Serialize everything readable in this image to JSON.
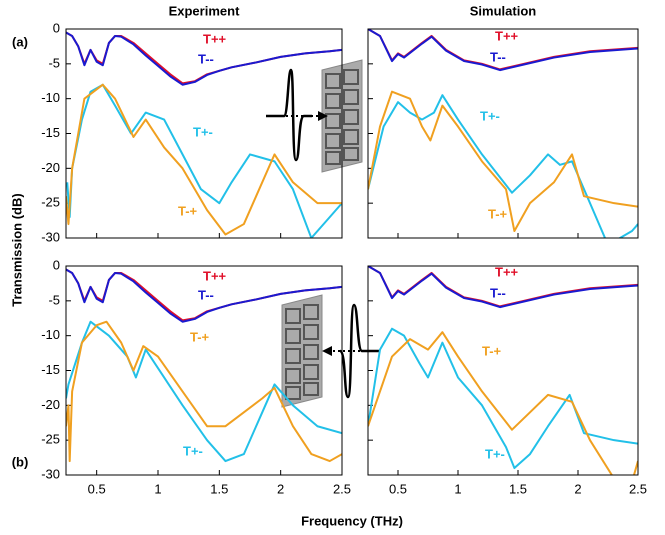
{
  "y_label": "Transmission (dB)",
  "x_label": "Frequency (THz)",
  "chart_data": [
    {
      "type": "line",
      "title": "Experiment",
      "panel_label": "(a)",
      "xlim": [
        0.25,
        2.5
      ],
      "ylim": [
        -30,
        0
      ],
      "xticks": [
        0.5,
        1,
        1.5,
        2,
        2.5
      ],
      "yticks": [
        0,
        -5,
        -10,
        -15,
        -20,
        -25,
        -30
      ],
      "series": [
        {
          "name": "T++",
          "color": "#e0102a",
          "x": [
            0.25,
            0.3,
            0.35,
            0.4,
            0.45,
            0.5,
            0.55,
            0.6,
            0.65,
            0.7,
            0.8,
            0.9,
            1.0,
            1.1,
            1.2,
            1.3,
            1.4,
            1.5,
            1.6,
            1.8,
            2.0,
            2.2,
            2.4,
            2.5
          ],
          "values": [
            -0.5,
            -1,
            -2.5,
            -5,
            -3,
            -4.5,
            -5,
            -2,
            -1,
            -1,
            -2,
            -3.5,
            -5,
            -6.5,
            -7.8,
            -7.5,
            -6.5,
            -6,
            -5.5,
            -4.8,
            -4,
            -3.5,
            -3.2,
            -3
          ]
        },
        {
          "name": "T--",
          "color": "#1a1ad0",
          "x": [
            0.25,
            0.3,
            0.35,
            0.4,
            0.45,
            0.5,
            0.55,
            0.6,
            0.65,
            0.7,
            0.8,
            0.9,
            1.0,
            1.1,
            1.2,
            1.3,
            1.4,
            1.5,
            1.6,
            1.8,
            2.0,
            2.2,
            2.4,
            2.5
          ],
          "values": [
            -0.5,
            -1,
            -2.5,
            -5.2,
            -3,
            -4.7,
            -5.2,
            -2,
            -1,
            -1.1,
            -2.2,
            -3.8,
            -5.3,
            -6.8,
            -8,
            -7.6,
            -6.6,
            -6,
            -5.5,
            -4.8,
            -4,
            -3.5,
            -3.2,
            -3
          ]
        },
        {
          "name": "T+-",
          "color": "#22c0e8",
          "x": [
            0.26,
            0.28,
            0.3,
            0.38,
            0.45,
            0.55,
            0.65,
            0.78,
            0.9,
            1.05,
            1.2,
            1.35,
            1.5,
            1.6,
            1.75,
            1.95,
            2.1,
            2.25,
            2.4,
            2.5
          ],
          "values": [
            -22,
            -27,
            -20,
            -13,
            -9,
            -8,
            -11,
            -15,
            -12,
            -13,
            -18,
            -23,
            -25,
            -22,
            -18,
            -19,
            -23,
            -30,
            -27,
            -25
          ]
        },
        {
          "name": "T-+",
          "color": "#f0a020",
          "x": [
            0.25,
            0.27,
            0.3,
            0.4,
            0.55,
            0.65,
            0.8,
            0.9,
            1.05,
            1.2,
            1.4,
            1.55,
            1.7,
            1.8,
            1.95,
            2.1,
            2.3,
            2.5
          ],
          "values": [
            -24,
            -28,
            -20,
            -10,
            -8,
            -10,
            -15.5,
            -13,
            -17,
            -20,
            -26,
            -29.5,
            -28,
            -24,
            -18,
            -22,
            -25,
            -25
          ]
        }
      ]
    },
    {
      "type": "line",
      "title": "Simulation",
      "xlim": [
        0.25,
        2.5
      ],
      "ylim": [
        -30,
        0
      ],
      "xticks": [
        0.5,
        1,
        1.5,
        2,
        2.5
      ],
      "yticks": [
        0,
        -5,
        -10,
        -15,
        -20,
        -25,
        -30
      ],
      "series": [
        {
          "name": "T++",
          "color": "#e0102a",
          "x": [
            0.25,
            0.35,
            0.45,
            0.5,
            0.55,
            0.7,
            0.78,
            0.9,
            1.05,
            1.2,
            1.35,
            1.55,
            1.8,
            2.1,
            2.5
          ],
          "values": [
            0,
            -1,
            -4.5,
            -3.5,
            -4,
            -2,
            -1,
            -3,
            -4.5,
            -5,
            -5.8,
            -5,
            -4,
            -3.2,
            -2.7
          ]
        },
        {
          "name": "T--",
          "color": "#1a1ad0",
          "x": [
            0.25,
            0.35,
            0.45,
            0.5,
            0.55,
            0.7,
            0.78,
            0.9,
            1.05,
            1.2,
            1.35,
            1.55,
            1.8,
            2.1,
            2.5
          ],
          "values": [
            0,
            -1,
            -4.6,
            -3.6,
            -4.1,
            -2.1,
            -1.1,
            -3.1,
            -4.6,
            -5.1,
            -5.9,
            -5.1,
            -4.1,
            -3.3,
            -2.8
          ]
        },
        {
          "name": "T+-",
          "color": "#22c0e8",
          "x": [
            0.25,
            0.38,
            0.5,
            0.6,
            0.7,
            0.8,
            0.87,
            1.0,
            1.2,
            1.45,
            1.6,
            1.75,
            1.85,
            1.95,
            2.1,
            2.25,
            2.45,
            2.5
          ],
          "values": [
            -23,
            -14,
            -10.5,
            -12,
            -13,
            -12,
            -9.5,
            -13,
            -18,
            -23.5,
            -21,
            -18,
            -19.5,
            -19,
            -25,
            -31,
            -29,
            -28
          ]
        },
        {
          "name": "T-+",
          "color": "#f0a020",
          "x": [
            0.25,
            0.35,
            0.45,
            0.6,
            0.7,
            0.77,
            0.87,
            1.0,
            1.2,
            1.4,
            1.47,
            1.6,
            1.8,
            1.95,
            2.05,
            2.3,
            2.5
          ],
          "values": [
            -23,
            -14,
            -9,
            -10,
            -14,
            -16,
            -11,
            -14,
            -19,
            -23,
            -29,
            -25,
            -22,
            -18,
            -24,
            -25,
            -25.5
          ]
        }
      ]
    },
    {
      "type": "line",
      "panel_label": "(b)",
      "xlim": [
        0.25,
        2.5
      ],
      "ylim": [
        -30,
        0
      ],
      "xticks": [
        0.5,
        1,
        1.5,
        2,
        2.5
      ],
      "yticks": [
        0,
        -5,
        -10,
        -15,
        -20,
        -25,
        -30
      ],
      "series": [
        {
          "name": "T++",
          "color": "#e0102a",
          "x": [
            0.25,
            0.3,
            0.35,
            0.4,
            0.45,
            0.5,
            0.55,
            0.6,
            0.65,
            0.7,
            0.8,
            0.9,
            1.0,
            1.1,
            1.2,
            1.3,
            1.4,
            1.5,
            1.6,
            1.8,
            2.0,
            2.2,
            2.4,
            2.5
          ],
          "values": [
            -0.5,
            -1,
            -2.5,
            -5,
            -3,
            -4.5,
            -5,
            -2,
            -1,
            -1,
            -2,
            -3.5,
            -5,
            -6.5,
            -7.8,
            -7.5,
            -6.5,
            -6,
            -5.5,
            -4.8,
            -4,
            -3.5,
            -3.2,
            -3
          ]
        },
        {
          "name": "T--",
          "color": "#1a1ad0",
          "x": [
            0.25,
            0.3,
            0.35,
            0.4,
            0.45,
            0.5,
            0.55,
            0.6,
            0.65,
            0.7,
            0.8,
            0.9,
            1.0,
            1.1,
            1.2,
            1.3,
            1.4,
            1.5,
            1.6,
            1.8,
            2.0,
            2.2,
            2.4,
            2.5
          ],
          "values": [
            -0.5,
            -1,
            -2.5,
            -5.2,
            -3,
            -4.7,
            -5.2,
            -2,
            -1,
            -1.1,
            -2.2,
            -3.8,
            -5.3,
            -6.8,
            -8,
            -7.6,
            -6.6,
            -6,
            -5.5,
            -4.8,
            -4,
            -3.5,
            -3.2,
            -3
          ]
        },
        {
          "name": "T+-",
          "color": "#22c0e8",
          "x": [
            0.25,
            0.27,
            0.38,
            0.45,
            0.6,
            0.75,
            0.82,
            0.9,
            1.05,
            1.2,
            1.4,
            1.55,
            1.7,
            1.85,
            1.95,
            2.1,
            2.3,
            2.5
          ],
          "values": [
            -19,
            -17,
            -11,
            -8,
            -10,
            -13,
            -16,
            -12,
            -16,
            -20,
            -25,
            -28,
            -27,
            -21,
            -17,
            -20,
            -23,
            -24
          ]
        },
        {
          "name": "T-+",
          "color": "#f0a020",
          "x": [
            0.25,
            0.27,
            0.28,
            0.3,
            0.38,
            0.5,
            0.58,
            0.7,
            0.8,
            0.88,
            1.0,
            1.2,
            1.4,
            1.55,
            1.7,
            1.85,
            1.95,
            2.1,
            2.25,
            2.4,
            2.5
          ],
          "values": [
            -23,
            -20,
            -28,
            -18,
            -11,
            -8.5,
            -8,
            -11,
            -15,
            -11.5,
            -13,
            -18,
            -23,
            -23,
            -21,
            -19,
            -17.5,
            -23,
            -27,
            -28,
            -27
          ]
        }
      ]
    },
    {
      "type": "line",
      "xlim": [
        0.25,
        2.5
      ],
      "ylim": [
        -30,
        0
      ],
      "xticks": [
        0.5,
        1,
        1.5,
        2,
        2.5
      ],
      "yticks": [
        0,
        -5,
        -10,
        -15,
        -20,
        -25,
        -30
      ],
      "series": [
        {
          "name": "T++",
          "color": "#e0102a",
          "x": [
            0.25,
            0.35,
            0.45,
            0.5,
            0.55,
            0.7,
            0.78,
            0.9,
            1.05,
            1.2,
            1.35,
            1.55,
            1.8,
            2.1,
            2.5
          ],
          "values": [
            0,
            -1,
            -4.5,
            -3.5,
            -4,
            -2,
            -1,
            -3,
            -4.5,
            -5,
            -5.8,
            -5,
            -4,
            -3.2,
            -2.7
          ]
        },
        {
          "name": "T--",
          "color": "#1a1ad0",
          "x": [
            0.25,
            0.35,
            0.45,
            0.5,
            0.55,
            0.7,
            0.78,
            0.9,
            1.05,
            1.2,
            1.35,
            1.55,
            1.8,
            2.1,
            2.5
          ],
          "values": [
            0,
            -1,
            -4.6,
            -3.6,
            -4.1,
            -2.1,
            -1.1,
            -3.1,
            -4.6,
            -5.1,
            -5.9,
            -5.1,
            -4.1,
            -3.3,
            -2.8
          ]
        },
        {
          "name": "T+-",
          "color": "#22c0e8",
          "x": [
            0.25,
            0.35,
            0.45,
            0.55,
            0.68,
            0.75,
            0.87,
            1.0,
            1.2,
            1.4,
            1.47,
            1.6,
            1.75,
            1.93,
            2.05,
            2.3,
            2.5
          ],
          "values": [
            -23,
            -12,
            -9,
            -10,
            -14,
            -16,
            -11,
            -16,
            -20,
            -26,
            -29,
            -27,
            -23,
            -18.5,
            -24,
            -25,
            -25.5
          ]
        },
        {
          "name": "T-+",
          "color": "#f0a020",
          "x": [
            0.25,
            0.45,
            0.6,
            0.75,
            0.87,
            1.0,
            1.2,
            1.45,
            1.6,
            1.75,
            1.95,
            2.1,
            2.3,
            2.45,
            2.5
          ],
          "values": [
            -23,
            -13,
            -10.5,
            -12,
            -9.5,
            -13,
            -18,
            -23.5,
            -21,
            -18.5,
            -19.5,
            -25,
            -30.5,
            -31,
            -28
          ]
        }
      ]
    }
  ]
}
